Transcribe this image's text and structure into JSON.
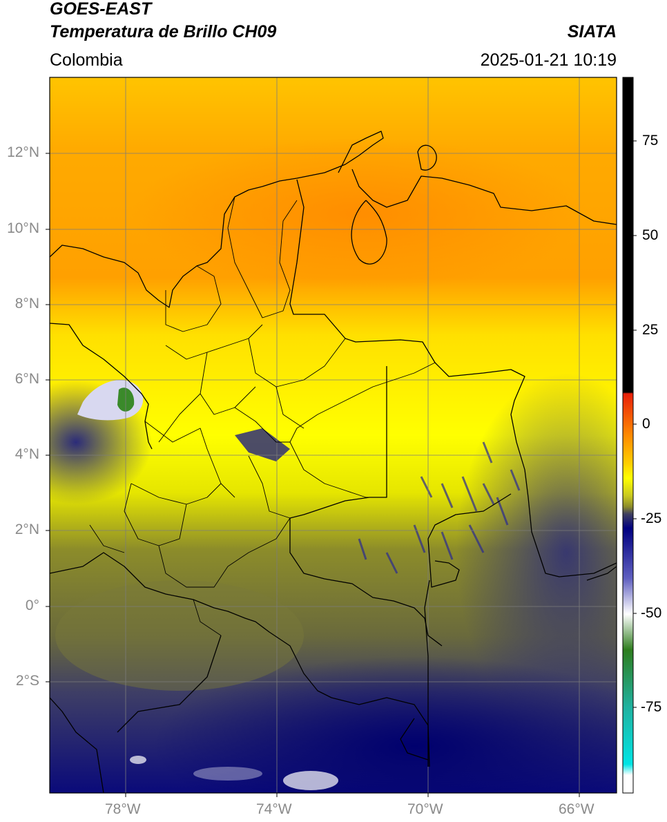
{
  "header": {
    "satellite": "GOES-EAST",
    "product": "Temperatura de Brillo CH09",
    "region": "Colombia",
    "source": "SIATA",
    "datetime": "2025-01-21 10:19"
  },
  "map": {
    "lat_ticks": [
      "12°N",
      "10°N",
      "8°N",
      "6°N",
      "4°N",
      "2°N",
      "0°",
      "2°S"
    ],
    "lon_ticks": [
      "78°W",
      "74°W",
      "70°W",
      "66°W"
    ],
    "extent": {
      "lon_min": -80,
      "lon_max": -65,
      "lat_min": -5,
      "lat_max": 14
    }
  },
  "colorbar": {
    "ticks": [
      "75",
      "50",
      "25",
      "0",
      "-25",
      "-50",
      "-75"
    ],
    "colors": {
      "black": "#000000",
      "red": "#e8200a",
      "orange": "#ff9a00",
      "yellow": "#ffff00",
      "olive": "#8c8c2a",
      "gray_blue": "#404060",
      "navy": "#00007a",
      "white": "#ffffff",
      "green": "#2e7d1e",
      "teal": "#20b2a0",
      "cyan": "#00e5e5"
    }
  }
}
